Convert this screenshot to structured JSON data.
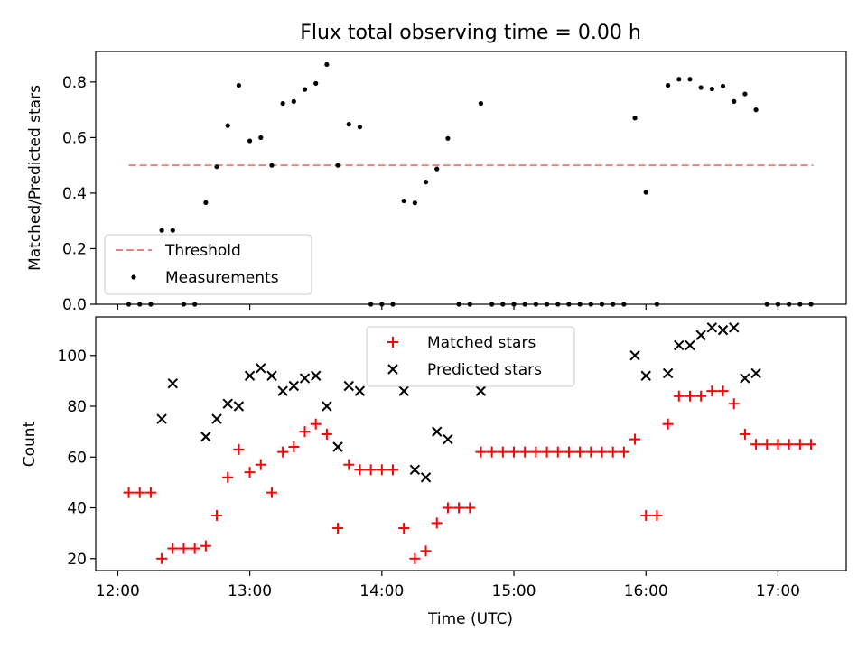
{
  "chart_data": [
    {
      "type": "scatter",
      "title": "Flux total observing time = 0.00 h",
      "xlabel": "",
      "ylabel": "Matched/Predicted stars",
      "ylim": [
        0,
        0.91
      ],
      "yticks": [
        "0.0",
        "0.2",
        "0.4",
        "0.6",
        "0.8"
      ],
      "legend_position": "lower-left",
      "threshold": {
        "name": "Threshold",
        "value": 0.5,
        "color": "#f08080",
        "x_range": [
          "12:05",
          "17:16"
        ]
      },
      "series": [
        {
          "name": "Measurements",
          "color": "#000000",
          "marker": "dot",
          "points": [
            [
              "12:05",
              0
            ],
            [
              "12:10",
              0
            ],
            [
              "12:15",
              0
            ],
            [
              "12:20",
              0.266
            ],
            [
              "12:25",
              0.266
            ],
            [
              "12:30",
              0
            ],
            [
              "12:35",
              0
            ],
            [
              "12:40",
              0.366
            ],
            [
              "12:45",
              0.495
            ],
            [
              "12:50",
              0.643
            ],
            [
              "12:55",
              0.788
            ],
            [
              "13:00",
              0.588
            ],
            [
              "13:05",
              0.6
            ],
            [
              "13:10",
              0.5
            ],
            [
              "13:15",
              0.723
            ],
            [
              "13:20",
              0.73
            ],
            [
              "13:25",
              0.773
            ],
            [
              "13:30",
              0.795
            ],
            [
              "13:35",
              0.863
            ],
            [
              "13:40",
              0.5
            ],
            [
              "13:45",
              0.648
            ],
            [
              "13:50",
              0.638
            ],
            [
              "13:55",
              0
            ],
            [
              "14:00",
              0
            ],
            [
              "14:05",
              0
            ],
            [
              "14:10",
              0.372
            ],
            [
              "14:15",
              0.365
            ],
            [
              "14:20",
              0.44
            ],
            [
              "14:25",
              0.487
            ],
            [
              "14:30",
              0.597
            ],
            [
              "14:35",
              0
            ],
            [
              "14:40",
              0
            ],
            [
              "14:45",
              0.723
            ],
            [
              "14:50",
              0
            ],
            [
              "14:55",
              0
            ],
            [
              "15:00",
              0
            ],
            [
              "15:05",
              0
            ],
            [
              "15:10",
              0
            ],
            [
              "15:15",
              0
            ],
            [
              "15:20",
              0
            ],
            [
              "15:25",
              0
            ],
            [
              "15:30",
              0
            ],
            [
              "15:35",
              0
            ],
            [
              "15:40",
              0
            ],
            [
              "15:45",
              0
            ],
            [
              "15:50",
              0
            ],
            [
              "15:55",
              0.67
            ],
            [
              "16:00",
              0.403
            ],
            [
              "16:05",
              0
            ],
            [
              "16:10",
              0.788
            ],
            [
              "16:15",
              0.81
            ],
            [
              "16:20",
              0.81
            ],
            [
              "16:25",
              0.78
            ],
            [
              "16:30",
              0.775
            ],
            [
              "16:35",
              0.785
            ],
            [
              "16:40",
              0.73
            ],
            [
              "16:45",
              0.757
            ],
            [
              "16:50",
              0.7
            ],
            [
              "16:55",
              0
            ],
            [
              "17:00",
              0
            ],
            [
              "17:05",
              0
            ],
            [
              "17:10",
              0
            ],
            [
              "17:15",
              0
            ]
          ]
        }
      ]
    },
    {
      "type": "scatter",
      "title": "",
      "xlabel": "Time (UTC)",
      "ylabel": "Count",
      "ylim": [
        15.3,
        115.2
      ],
      "yticks": [
        "20",
        "40",
        "60",
        "80",
        "100"
      ],
      "xticks": [
        "12:00",
        "13:00",
        "14:00",
        "15:00",
        "16:00",
        "17:00"
      ],
      "legend_position": "upper-center",
      "series": [
        {
          "name": "Matched stars",
          "color": "#ff0000",
          "marker": "plus",
          "points": [
            [
              "12:05",
              46
            ],
            [
              "12:10",
              46
            ],
            [
              "12:15",
              46
            ],
            [
              "12:20",
              20
            ],
            [
              "12:25",
              24
            ],
            [
              "12:30",
              24
            ],
            [
              "12:35",
              24
            ],
            [
              "12:40",
              25
            ],
            [
              "12:45",
              37
            ],
            [
              "12:50",
              52
            ],
            [
              "12:55",
              63
            ],
            [
              "13:00",
              54
            ],
            [
              "13:05",
              57
            ],
            [
              "13:10",
              46
            ],
            [
              "13:15",
              62
            ],
            [
              "13:20",
              64
            ],
            [
              "13:25",
              70
            ],
            [
              "13:30",
              73
            ],
            [
              "13:35",
              69
            ],
            [
              "13:40",
              32
            ],
            [
              "13:45",
              57
            ],
            [
              "13:50",
              55
            ],
            [
              "13:55",
              55
            ],
            [
              "14:00",
              55
            ],
            [
              "14:05",
              55
            ],
            [
              "14:10",
              32
            ],
            [
              "14:15",
              20
            ],
            [
              "14:20",
              23
            ],
            [
              "14:25",
              34
            ],
            [
              "14:30",
              40
            ],
            [
              "14:35",
              40
            ],
            [
              "14:40",
              40
            ],
            [
              "14:45",
              62
            ],
            [
              "14:50",
              62
            ],
            [
              "14:55",
              62
            ],
            [
              "15:00",
              62
            ],
            [
              "15:05",
              62
            ],
            [
              "15:10",
              62
            ],
            [
              "15:15",
              62
            ],
            [
              "15:20",
              62
            ],
            [
              "15:25",
              62
            ],
            [
              "15:30",
              62
            ],
            [
              "15:35",
              62
            ],
            [
              "15:40",
              62
            ],
            [
              "15:45",
              62
            ],
            [
              "15:50",
              62
            ],
            [
              "15:55",
              67
            ],
            [
              "16:00",
              37
            ],
            [
              "16:05",
              37
            ],
            [
              "16:10",
              73
            ],
            [
              "16:15",
              84
            ],
            [
              "16:20",
              84
            ],
            [
              "16:25",
              84
            ],
            [
              "16:30",
              86
            ],
            [
              "16:35",
              86
            ],
            [
              "16:40",
              81
            ],
            [
              "16:45",
              69
            ],
            [
              "16:50",
              65
            ],
            [
              "16:55",
              65
            ],
            [
              "17:00",
              65
            ],
            [
              "17:05",
              65
            ],
            [
              "17:10",
              65
            ],
            [
              "17:15",
              65
            ]
          ]
        },
        {
          "name": "Predicted stars",
          "color": "#000000",
          "marker": "x",
          "points": [
            [
              "12:20",
              75
            ],
            [
              "12:25",
              89
            ],
            [
              "12:40",
              68
            ],
            [
              "12:45",
              75
            ],
            [
              "12:50",
              81
            ],
            [
              "12:55",
              80
            ],
            [
              "13:00",
              92
            ],
            [
              "13:05",
              95
            ],
            [
              "13:10",
              92
            ],
            [
              "13:15",
              86
            ],
            [
              "13:20",
              88
            ],
            [
              "13:25",
              91
            ],
            [
              "13:30",
              92
            ],
            [
              "13:35",
              80
            ],
            [
              "13:40",
              64
            ],
            [
              "13:45",
              88
            ],
            [
              "13:50",
              86
            ],
            [
              "14:10",
              86
            ],
            [
              "14:15",
              55
            ],
            [
              "14:20",
              52
            ],
            [
              "14:25",
              70
            ],
            [
              "14:30",
              67
            ],
            [
              "14:45",
              86
            ],
            [
              "15:55",
              100
            ],
            [
              "16:00",
              92
            ],
            [
              "16:10",
              93
            ],
            [
              "16:15",
              104
            ],
            [
              "16:20",
              104
            ],
            [
              "16:25",
              108
            ],
            [
              "16:30",
              111
            ],
            [
              "16:35",
              110
            ],
            [
              "16:40",
              111
            ],
            [
              "16:45",
              91
            ],
            [
              "16:50",
              93
            ]
          ]
        }
      ]
    }
  ],
  "x_domain": [
    "11:50",
    "17:31"
  ]
}
